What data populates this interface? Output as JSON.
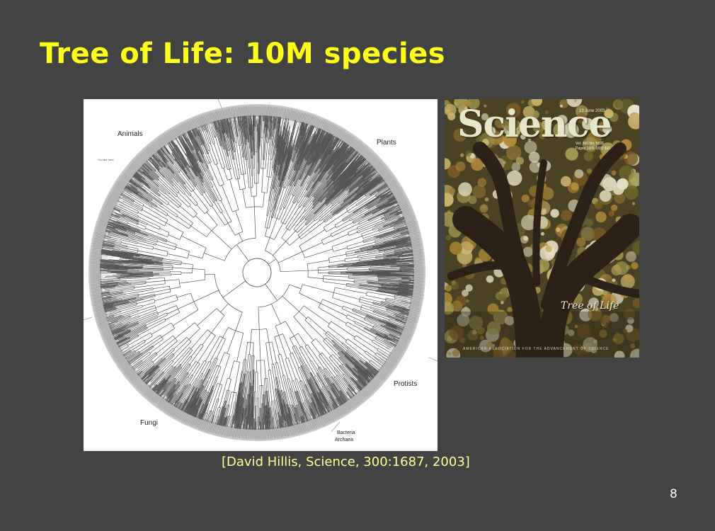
{
  "slide": {
    "title": "Tree of Life: 10M species",
    "citation": "[David Hillis, Science, 300:1687, 2003]",
    "page_number": "8"
  },
  "tree_figure": {
    "labels": {
      "animals": "Animals",
      "plants": "Plants",
      "protists": "Protists",
      "fungi": "Fungi",
      "bacteria": "Bacteria",
      "archaea": "Archaea",
      "you_are_here": "You are here"
    }
  },
  "science_cover": {
    "masthead": "Science",
    "date": "13 June 2003",
    "issue_lines": [
      "Vol. 300   No. 5626",
      "Pages 1605-1832  $10"
    ],
    "caption": "Tree of Life",
    "footer": "AMERICAN ASSOCIATION FOR THE ADVANCEMENT OF SCIENCE"
  }
}
